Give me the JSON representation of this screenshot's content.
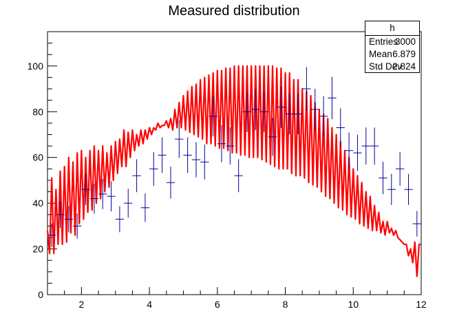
{
  "chart_data": {
    "type": "histogram-with-fit",
    "title": "Measured distribution",
    "xlim": [
      1,
      12
    ],
    "ylim": [
      0,
      115
    ],
    "x_ticks": [
      2,
      4,
      6,
      8,
      10,
      12
    ],
    "y_ticks": [
      0,
      20,
      40,
      60,
      80,
      100
    ],
    "stats_box": {
      "name": "h",
      "entries_label": "Entries",
      "entries": "3000",
      "mean_label": "Mean",
      "mean": "6.879",
      "std_label": "Std Dev",
      "std": "2.824"
    },
    "data_points": {
      "bin_width": 0.25,
      "x": [
        1.125,
        1.375,
        1.625,
        1.875,
        2.125,
        2.375,
        2.625,
        2.875,
        3.125,
        3.375,
        3.625,
        3.875,
        4.125,
        4.375,
        4.625,
        4.875,
        5.125,
        5.375,
        5.625,
        5.875,
        6.125,
        6.375,
        6.625,
        6.875,
        7.125,
        7.375,
        7.625,
        7.875,
        8.125,
        8.375,
        8.625,
        8.875,
        9.125,
        9.375,
        9.625,
        9.875,
        10.125,
        10.375,
        10.625,
        10.875,
        11.125,
        11.375,
        11.625,
        11.875
      ],
      "y": [
        26,
        35,
        33,
        30,
        46,
        42,
        44,
        43,
        33,
        40,
        52,
        38,
        55,
        61,
        49,
        68,
        61,
        59,
        58,
        78,
        66,
        65,
        52,
        80,
        81,
        80,
        69,
        82,
        79,
        79,
        90,
        81,
        78,
        86,
        73,
        63,
        62,
        65,
        65,
        51,
        46,
        55,
        46,
        31
      ],
      "err": [
        5.1,
        5.9,
        5.7,
        5.5,
        6.8,
        6.5,
        6.6,
        6.6,
        5.7,
        6.3,
        7.2,
        6.2,
        7.4,
        7.8,
        7.0,
        8.2,
        7.8,
        7.7,
        7.6,
        8.8,
        8.1,
        8.1,
        7.2,
        8.9,
        9.0,
        8.9,
        8.3,
        9.1,
        8.9,
        8.9,
        9.5,
        9.0,
        8.8,
        9.3,
        8.5,
        7.9,
        7.9,
        8.1,
        8.1,
        7.1,
        6.8,
        7.4,
        6.8,
        5.6
      ]
    },
    "fit_curve": {
      "color": "#ff0000",
      "x": [
        1.0,
        1.0625,
        1.125,
        1.1875,
        1.25,
        1.3125,
        1.375,
        1.4375,
        1.5,
        1.5625,
        1.625,
        1.6875,
        1.75,
        1.8125,
        1.875,
        1.9375,
        2.0,
        2.0625,
        2.125,
        2.1875,
        2.25,
        2.3125,
        2.375,
        2.4375,
        2.5,
        2.5625,
        2.625,
        2.6875,
        2.75,
        2.8125,
        2.875,
        2.9375,
        3.0,
        3.0625,
        3.125,
        3.1875,
        3.25,
        3.3125,
        3.375,
        3.4375,
        3.5,
        3.5625,
        3.625,
        3.6875,
        3.75,
        3.8125,
        3.875,
        3.9375,
        4.0,
        4.0625,
        4.125,
        4.1875,
        4.25,
        4.3125,
        4.375,
        4.4375,
        4.5,
        4.5625,
        4.625,
        4.6875,
        4.75,
        4.8125,
        4.875,
        4.9375,
        5.0,
        5.0625,
        5.125,
        5.1875,
        5.25,
        5.3125,
        5.375,
        5.4375,
        5.5,
        5.5625,
        5.625,
        5.6875,
        5.75,
        5.8125,
        5.875,
        5.9375,
        6.0,
        6.0625,
        6.125,
        6.1875,
        6.25,
        6.3125,
        6.375,
        6.4375,
        6.5,
        6.5625,
        6.625,
        6.6875,
        6.75,
        6.8125,
        6.875,
        6.9375,
        7.0,
        7.0625,
        7.125,
        7.1875,
        7.25,
        7.3125,
        7.375,
        7.4375,
        7.5,
        7.5625,
        7.625,
        7.6875,
        7.75,
        7.8125,
        7.875,
        7.9375,
        8.0,
        8.0625,
        8.125,
        8.1875,
        8.25,
        8.3125,
        8.375,
        8.4375,
        8.5,
        8.5625,
        8.625,
        8.6875,
        8.75,
        8.8125,
        8.875,
        8.9375,
        9.0,
        9.0625,
        9.125,
        9.1875,
        9.25,
        9.3125,
        9.375,
        9.4375,
        9.5,
        9.5625,
        9.625,
        9.6875,
        9.75,
        9.8125,
        9.875,
        9.9375,
        10.0,
        10.0625,
        10.125,
        10.1875,
        10.25,
        10.3125,
        10.375,
        10.4375,
        10.5,
        10.5625,
        10.625,
        10.6875,
        10.75,
        10.8125,
        10.875,
        10.9375,
        11.0,
        11.0625,
        11.125,
        11.1875,
        11.25,
        11.3125,
        11.375,
        11.4375,
        11.5,
        11.5625,
        11.625,
        11.6875,
        11.75,
        11.8125,
        11.875,
        11.9375,
        12.0
      ],
      "y": [
        28,
        18,
        51,
        18,
        46,
        22,
        54,
        22,
        56,
        23,
        60,
        27,
        58,
        26,
        62,
        31,
        63,
        33,
        60,
        36,
        63,
        37,
        65,
        40,
        63,
        42,
        65,
        45,
        62,
        47,
        65,
        50,
        67,
        53,
        68,
        56,
        72,
        56,
        71,
        60,
        72,
        63,
        70,
        65,
        72,
        66,
        72,
        68,
        73,
        70,
        73,
        72,
        75,
        73,
        74,
        74,
        76,
        73,
        77,
        72,
        81,
        73,
        84,
        73,
        87,
        72,
        89,
        71,
        91,
        70,
        92,
        69,
        94,
        68,
        95,
        66,
        96,
        66,
        97,
        65,
        98,
        64,
        98,
        64,
        99,
        63,
        99,
        62,
        100,
        62,
        100,
        61,
        100,
        61,
        100,
        60,
        100,
        60,
        100,
        60,
        100,
        59,
        100,
        58,
        100,
        57,
        100,
        56,
        99,
        55,
        99,
        55,
        97,
        55,
        97,
        53,
        94,
        52,
        94,
        52,
        90,
        51,
        89,
        49,
        87,
        48,
        84,
        47,
        81,
        45,
        79,
        43,
        77,
        42,
        73,
        40,
        70,
        38,
        67,
        37,
        63,
        35,
        60,
        34,
        55,
        33,
        52,
        31,
        49,
        30,
        45,
        29,
        43,
        28,
        39,
        28,
        36,
        27,
        32,
        26,
        32,
        27,
        29,
        26,
        28,
        25,
        24,
        23,
        22,
        22,
        17,
        20,
        14,
        23,
        8,
        22,
        22
      ]
    }
  }
}
